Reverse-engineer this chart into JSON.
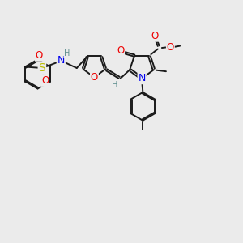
{
  "bg_color": "#ebebeb",
  "bond_color": "#1a1a1a",
  "bond_width": 1.4,
  "atom_colors": {
    "H": "#5f8f8f",
    "N": "#0000ee",
    "O": "#ee0000",
    "S": "#bbbb00"
  },
  "font_size": 8.5
}
